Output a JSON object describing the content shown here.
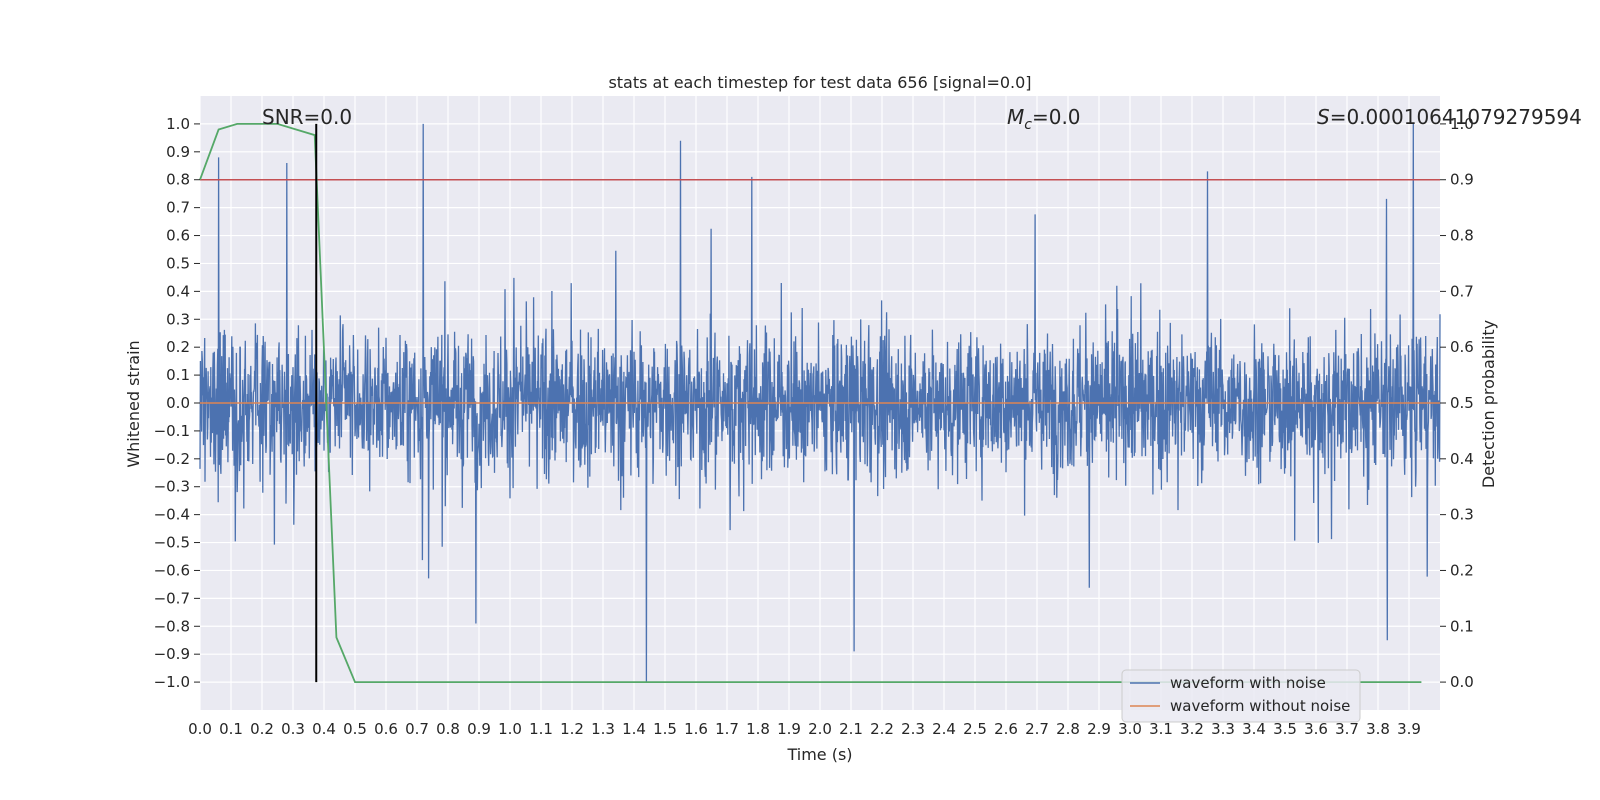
{
  "chart_data": {
    "type": "line",
    "title": "stats at each timestep for test data 656 [signal=0.0]",
    "xlabel": "Time (s)",
    "ylabel": "Whitened strain",
    "y2label": "Detection probability",
    "xlim": [
      0.0,
      4.0
    ],
    "ylim": [
      -1.1,
      1.1
    ],
    "y2lim": [
      -0.05,
      1.05
    ],
    "grid": true,
    "background": "#eaeaf2",
    "x_ticks": [
      "0.0",
      "0.1",
      "0.2",
      "0.3",
      "0.4",
      "0.5",
      "0.6",
      "0.7",
      "0.8",
      "0.9",
      "1.0",
      "1.1",
      "1.2",
      "1.3",
      "1.4",
      "1.5",
      "1.6",
      "1.7",
      "1.8",
      "1.9",
      "2.0",
      "2.1",
      "2.2",
      "2.3",
      "2.4",
      "2.5",
      "2.6",
      "2.7",
      "2.8",
      "2.9",
      "3.0",
      "3.1",
      "3.2",
      "3.3",
      "3.4",
      "3.5",
      "3.6",
      "3.7",
      "3.8",
      "3.9"
    ],
    "y_ticks": [
      "1.0",
      "0.9",
      "0.8",
      "0.7",
      "0.6",
      "0.5",
      "0.4",
      "0.3",
      "0.2",
      "0.1",
      "0.0",
      "−0.1",
      "−0.2",
      "−0.3",
      "−0.4",
      "−0.5",
      "−0.6",
      "−0.7",
      "−0.8",
      "−0.9",
      "−1.0"
    ],
    "y2_ticks": [
      "1.0",
      "0.9",
      "0.8",
      "0.7",
      "0.6",
      "0.5",
      "0.4",
      "0.3",
      "0.2",
      "0.1",
      "0.0"
    ],
    "annotations": {
      "snr": "SNR=0.0",
      "mc_symbol": "M",
      "mc_sub": "c",
      "mc_value": "=0.0",
      "s_symbol": "S",
      "s_value": "=0.00010641079279594"
    },
    "series": [
      {
        "name": "waveform with noise",
        "color": "#4c72b0",
        "kind": "noise",
        "amplitude_range": [
          -1.0,
          1.0
        ],
        "spikes": [
          {
            "x": 0.06,
            "y": 0.88
          },
          {
            "x": 0.28,
            "y": 0.86
          },
          {
            "x": 0.72,
            "y": 1.0
          },
          {
            "x": 1.55,
            "y": 0.94
          },
          {
            "x": 1.78,
            "y": 0.81
          },
          {
            "x": 3.25,
            "y": 0.83
          },
          {
            "x": 1.44,
            "y": -1.0
          },
          {
            "x": 2.11,
            "y": -0.89
          },
          {
            "x": 3.83,
            "y": -0.85
          },
          {
            "x": 0.89,
            "y": -0.79
          }
        ]
      },
      {
        "name": "waveform without noise",
        "color": "#dd8452",
        "x": [
          0.0,
          4.0
        ],
        "y": [
          0.0,
          0.0
        ]
      },
      {
        "name": "detection probability",
        "color": "#55a868",
        "axis": "right",
        "x": [
          0.0,
          0.06,
          0.12,
          0.19,
          0.25,
          0.31,
          0.37,
          0.44,
          0.5,
          3.94
        ],
        "y": [
          0.9,
          0.99,
          1.0,
          1.0,
          1.0,
          0.99,
          0.98,
          0.08,
          0.0,
          0.0
        ]
      }
    ],
    "threshold": {
      "axis": "right",
      "y": 0.9,
      "color": "#c44e52"
    },
    "marker_line": {
      "x": 0.375,
      "y_from": -1.0,
      "y_to": 1.0,
      "color": "#000000"
    },
    "legend": {
      "position": "lower right",
      "entries": [
        "waveform with noise",
        "waveform without noise"
      ]
    }
  }
}
